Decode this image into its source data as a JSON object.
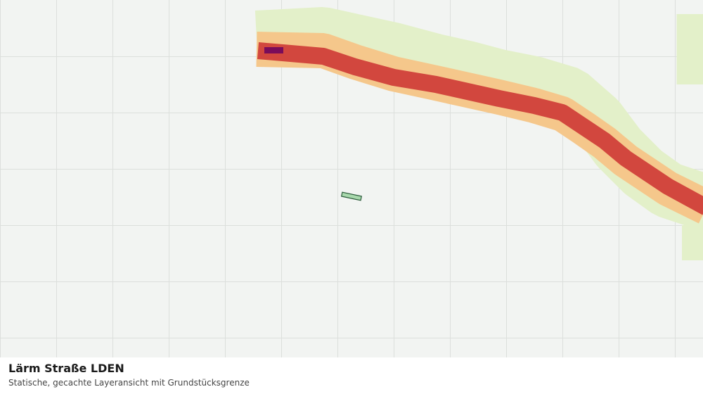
{
  "title": "Lärm Straße LDEN",
  "subtitle": "Statische, gecachte Layeransicht mit Grundstücksgrenze"
}
